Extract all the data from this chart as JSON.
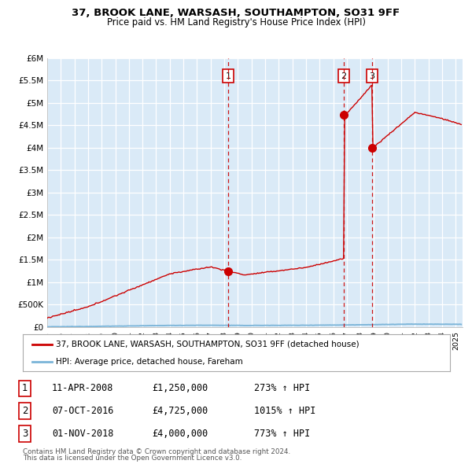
{
  "title1": "37, BROOK LANE, WARSASH, SOUTHAMPTON, SO31 9FF",
  "title2": "Price paid vs. HM Land Registry's House Price Index (HPI)",
  "background_color": "#daeaf7",
  "red_line_color": "#cc0000",
  "blue_line_color": "#7ab4d8",
  "vline_color": "#cc0000",
  "sale1_year": 2008.28,
  "sale2_year": 2016.77,
  "sale3_year": 2018.84,
  "sale1_price": 1250000,
  "sale2_price": 4725000,
  "sale3_price": 4000000,
  "sales": [
    {
      "date_num": 2008.28,
      "price": 1250000,
      "label": "1"
    },
    {
      "date_num": 2016.77,
      "price": 4725000,
      "label": "2"
    },
    {
      "date_num": 2018.84,
      "price": 4000000,
      "label": "3"
    }
  ],
  "sale_info": [
    {
      "num": "1",
      "date": "11-APR-2008",
      "price": "£1,250,000",
      "hpi": "273% ↑ HPI"
    },
    {
      "num": "2",
      "date": "07-OCT-2016",
      "price": "£4,725,000",
      "hpi": "1015% ↑ HPI"
    },
    {
      "num": "3",
      "date": "01-NOV-2018",
      "price": "£4,000,000",
      "hpi": "773% ↑ HPI"
    }
  ],
  "legend_line1": "37, BROOK LANE, WARSASH, SOUTHAMPTON, SO31 9FF (detached house)",
  "legend_line2": "HPI: Average price, detached house, Fareham",
  "footer1": "Contains HM Land Registry data © Crown copyright and database right 2024.",
  "footer2": "This data is licensed under the Open Government Licence v3.0.",
  "ylim": [
    0,
    6000000
  ],
  "xlim_start": 1995.0,
  "xlim_end": 2025.5,
  "yticks": [
    0,
    500000,
    1000000,
    1500000,
    2000000,
    2500000,
    3000000,
    3500000,
    4000000,
    4500000,
    5000000,
    5500000,
    6000000
  ],
  "ytick_labels": [
    "£0",
    "£500K",
    "£1M",
    "£1.5M",
    "£2M",
    "£2.5M",
    "£3M",
    "£3.5M",
    "£4M",
    "£4.5M",
    "£5M",
    "£5.5M",
    "£6M"
  ],
  "xticks": [
    1995,
    1996,
    1997,
    1998,
    1999,
    2000,
    2001,
    2002,
    2003,
    2004,
    2005,
    2006,
    2007,
    2008,
    2009,
    2010,
    2011,
    2012,
    2013,
    2014,
    2015,
    2016,
    2017,
    2018,
    2019,
    2020,
    2021,
    2022,
    2023,
    2024,
    2025
  ]
}
